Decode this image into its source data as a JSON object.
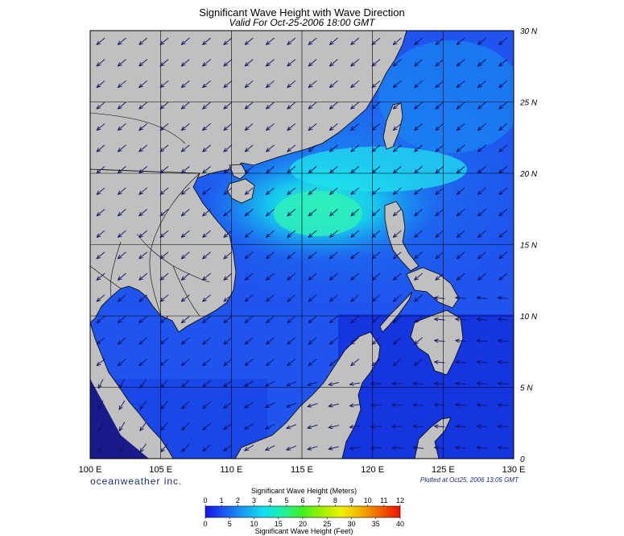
{
  "title": "Significant Wave Height with Wave Direction",
  "subtitle": "Valid For Oct-25-2006 18:00 GMT",
  "credit": "oceanweather inc.",
  "plotted": "Plotted at Oct25, 2006 13:05 GMT",
  "map": {
    "lon_range": [
      100,
      130
    ],
    "lat_range": [
      0,
      30
    ],
    "lon_labels": [
      "100 E",
      "105 E",
      "110 E",
      "115 E",
      "120 E",
      "125 E",
      "130 E"
    ],
    "lat_labels": [
      "0",
      "5 N",
      "10 N",
      "15 N",
      "20 N",
      "25 N",
      "30 N"
    ],
    "land_color": "#c0c0c0",
    "grid": true
  },
  "legend": {
    "meters_title": "Significant Wave Height (Meters)",
    "feet_title": "Significant Wave Height (Feet)",
    "meters_ticks": [
      "0",
      "1",
      "2",
      "3",
      "4",
      "5",
      "6",
      "7",
      "8",
      "9",
      "10",
      "11",
      "12"
    ],
    "feet_ticks": [
      "0",
      "5",
      "10",
      "15",
      "20",
      "25",
      "30",
      "35",
      "40"
    ],
    "colors": [
      "#1414e6",
      "#1e5af0",
      "#18a0f0",
      "#10e0f0",
      "#20f0a0",
      "#40f020",
      "#a0f000",
      "#f0f000",
      "#f0b000",
      "#f06000",
      "#f01000"
    ]
  }
}
